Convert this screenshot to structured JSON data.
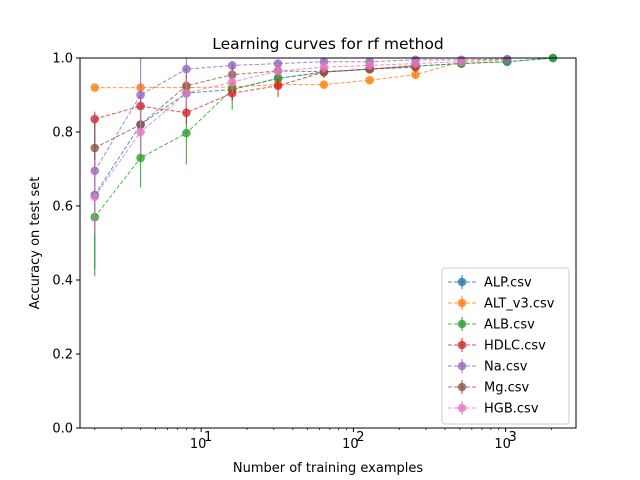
{
  "chart_data": {
    "type": "line",
    "title": "Learning curves for rf method",
    "xlabel": "Number of training examples",
    "ylabel": "Accuracy on test set",
    "xscale": "log",
    "xlim": [
      1.6,
      2900
    ],
    "ylim": [
      0.0,
      1.0
    ],
    "xticks": [
      {
        "value": 10,
        "label": "10",
        "exp": "1"
      },
      {
        "value": 100,
        "label": "10",
        "exp": "2"
      },
      {
        "value": 1000,
        "label": "10",
        "exp": "3"
      }
    ],
    "yticks": [
      "0.0",
      "0.2",
      "0.4",
      "0.6",
      "0.8",
      "1.0"
    ],
    "legend_position": "lower-right",
    "series": [
      {
        "name": "ALP.csv",
        "color": "#1f77b4",
        "x": [
          2,
          4,
          8,
          16,
          32,
          64,
          128,
          256,
          512,
          1024,
          2048
        ],
        "y": [
          0.63,
          0.82,
          0.905,
          0.915,
          0.945,
          0.962,
          0.97,
          0.978,
          0.985,
          0.99,
          1.0
        ],
        "err": [
          0.2,
          0.08,
          0.05,
          0.03,
          0.02,
          0.015,
          0.01,
          0.008,
          0.005,
          0.004,
          0.0
        ]
      },
      {
        "name": "ALT_v3.csv",
        "color": "#ff7f0e",
        "x": [
          2,
          4,
          8,
          16,
          32,
          64,
          128,
          256,
          512,
          1024
        ],
        "y": [
          0.92,
          0.92,
          0.92,
          0.922,
          0.928,
          0.928,
          0.94,
          0.955,
          0.99,
          0.995
        ],
        "err": [
          0.0,
          0.0,
          0.0,
          0.01,
          0.01,
          0.01,
          0.01,
          0.01,
          0.005,
          0.003
        ]
      },
      {
        "name": "ALB.csv",
        "color": "#2ca02c",
        "x": [
          2,
          4,
          8,
          16,
          32,
          64,
          128,
          256,
          512,
          1024,
          2048
        ],
        "y": [
          0.57,
          0.73,
          0.797,
          0.915,
          0.945,
          0.962,
          0.97,
          0.978,
          0.985,
          0.99,
          1.0
        ],
        "err": [
          0.16,
          0.08,
          0.085,
          0.055,
          0.02,
          0.015,
          0.01,
          0.008,
          0.005,
          0.004,
          0.0
        ]
      },
      {
        "name": "HDLC.csv",
        "color": "#d62728",
        "x": [
          2,
          4,
          8,
          16,
          32,
          64,
          128,
          256
        ],
        "y": [
          0.835,
          0.87,
          0.852,
          0.905,
          0.925,
          0.962,
          0.97,
          0.975
        ],
        "err": [
          0.02,
          0.03,
          0.03,
          0.02,
          0.03,
          0.015,
          0.01,
          0.008
        ]
      },
      {
        "name": "Na.csv",
        "color": "#9467bd",
        "x": [
          2,
          4,
          8,
          16,
          32,
          64,
          128,
          256,
          512,
          1024
        ],
        "y": [
          0.695,
          0.9,
          0.97,
          0.98,
          0.985,
          0.99,
          0.99,
          0.995,
          0.995,
          0.997
        ],
        "err": [
          0.15,
          0.1,
          0.03,
          0.01,
          0.008,
          0.006,
          0.005,
          0.004,
          0.003,
          0.002
        ]
      },
      {
        "name": "Mg.csv",
        "color": "#8c564b",
        "x": [
          2,
          4,
          8,
          16,
          32,
          64,
          128,
          256
        ],
        "y": [
          0.757,
          0.82,
          0.925,
          0.955,
          0.965,
          0.963,
          0.97,
          0.98
        ],
        "err": [
          0.08,
          0.06,
          0.03,
          0.02,
          0.015,
          0.015,
          0.01,
          0.008
        ]
      },
      {
        "name": "HGB.csv",
        "color": "#e377c2",
        "x": [
          2,
          4,
          8,
          16,
          32,
          64,
          128,
          256,
          512
        ],
        "y": [
          0.625,
          0.8,
          0.905,
          0.935,
          0.965,
          0.975,
          0.98,
          0.985,
          0.99
        ],
        "err": [
          0.1,
          0.06,
          0.04,
          0.03,
          0.02,
          0.015,
          0.01,
          0.008,
          0.005
        ]
      }
    ]
  }
}
